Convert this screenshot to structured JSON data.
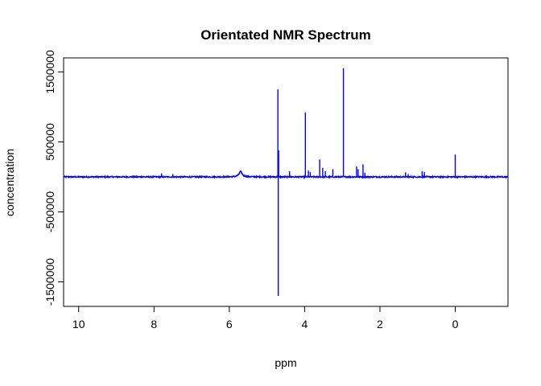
{
  "chart_data": {
    "type": "line",
    "title": "Orientated NMR Spectrum",
    "xlabel": "ppm",
    "ylabel": "concentration",
    "xlim": [
      10.4,
      -1.4
    ],
    "ylim": [
      -1850000,
      1700000
    ],
    "x_reversed": true,
    "x_ticks": [
      10,
      8,
      6,
      4,
      2,
      0
    ],
    "x_tick_labels": [
      "10",
      "8",
      "6",
      "4",
      "2",
      "0"
    ],
    "y_ticks": [
      -1500000,
      -500000,
      500000,
      1500000
    ],
    "y_tick_labels": [
      "-1500000",
      "-500000",
      "500000",
      "1500000"
    ],
    "grid": false,
    "legend": "none",
    "series": [
      {
        "color": "#0000ff",
        "baseline": 0,
        "noise": 8000,
        "broad_peaks": [
          {
            "ppm": 5.7,
            "height": 75000,
            "width": 0.05
          }
        ],
        "peaks": [
          {
            "ppm": 7.8,
            "height": 50000
          },
          {
            "ppm": 7.5,
            "height": 40000
          },
          {
            "ppm": 8.3,
            "height": 15000
          },
          {
            "ppm": 6.6,
            "height": 15000
          },
          {
            "ppm": 4.71,
            "height": 1250000
          },
          {
            "ppm": 4.7,
            "height": -1700000
          },
          {
            "ppm": 4.69,
            "height": 380000
          },
          {
            "ppm": 4.4,
            "height": 80000
          },
          {
            "ppm": 3.98,
            "height": 920000
          },
          {
            "ppm": 3.9,
            "height": 90000
          },
          {
            "ppm": 3.85,
            "height": 70000
          },
          {
            "ppm": 3.6,
            "height": 250000
          },
          {
            "ppm": 3.52,
            "height": 130000
          },
          {
            "ppm": 3.45,
            "height": 80000
          },
          {
            "ppm": 3.25,
            "height": 110000
          },
          {
            "ppm": 2.97,
            "height": 1550000
          },
          {
            "ppm": 2.62,
            "height": 150000
          },
          {
            "ppm": 2.58,
            "height": 110000
          },
          {
            "ppm": 2.45,
            "height": 180000
          },
          {
            "ppm": 2.4,
            "height": 60000
          },
          {
            "ppm": 1.32,
            "height": 65000
          },
          {
            "ppm": 1.25,
            "height": 40000
          },
          {
            "ppm": 0.88,
            "height": 80000
          },
          {
            "ppm": 0.82,
            "height": 70000
          },
          {
            "ppm": 0.0,
            "height": 320000
          }
        ]
      }
    ]
  }
}
